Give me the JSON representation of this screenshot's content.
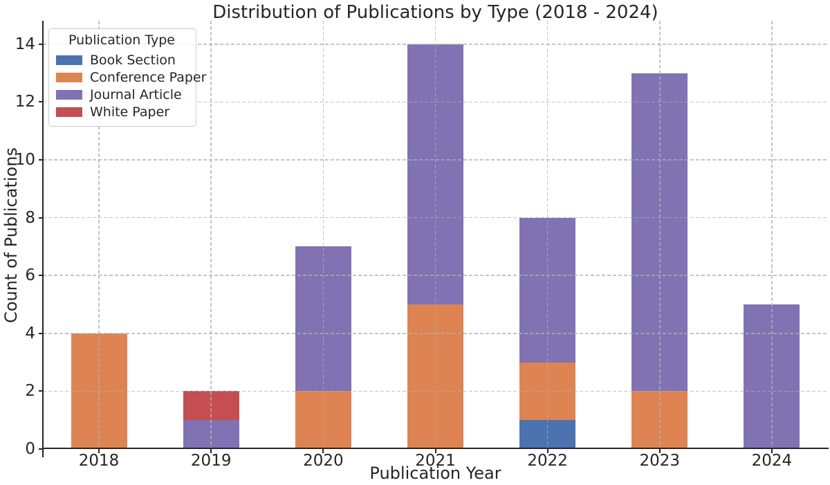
{
  "chart_data": {
    "type": "bar",
    "stacked": true,
    "title": "Distribution of Publications by Type (2018 - 2024)",
    "xlabel": "Publication Year",
    "ylabel": "Count of Publications",
    "categories": [
      "2018",
      "2019",
      "2020",
      "2021",
      "2022",
      "2023",
      "2024"
    ],
    "series": [
      {
        "name": "Book Section",
        "color": "#4C72B0",
        "values": [
          0,
          0,
          0,
          0,
          1,
          0,
          0
        ]
      },
      {
        "name": "Conference Paper",
        "color": "#DD8452",
        "values": [
          4,
          0,
          2,
          5,
          2,
          2,
          0
        ]
      },
      {
        "name": "Journal Article",
        "color": "#8172B3",
        "values": [
          0,
          1,
          5,
          9,
          5,
          11,
          5
        ]
      },
      {
        "name": "White Paper",
        "color": "#C44E52",
        "values": [
          0,
          1,
          0,
          0,
          0,
          0,
          0
        ]
      }
    ],
    "totals_by_year": [
      4,
      2,
      7,
      14,
      8,
      13,
      5
    ],
    "yticks": [
      0,
      2,
      4,
      6,
      8,
      10,
      12,
      14
    ],
    "ylim": [
      0,
      14.81
    ],
    "grid": true,
    "grid_style": "dashed",
    "legend": {
      "title": "Publication Type",
      "position": "upper-left"
    },
    "colors": {
      "grid": "#b0b0b0",
      "spine": "#262626",
      "text": "#262626",
      "background": "#ffffff"
    }
  }
}
